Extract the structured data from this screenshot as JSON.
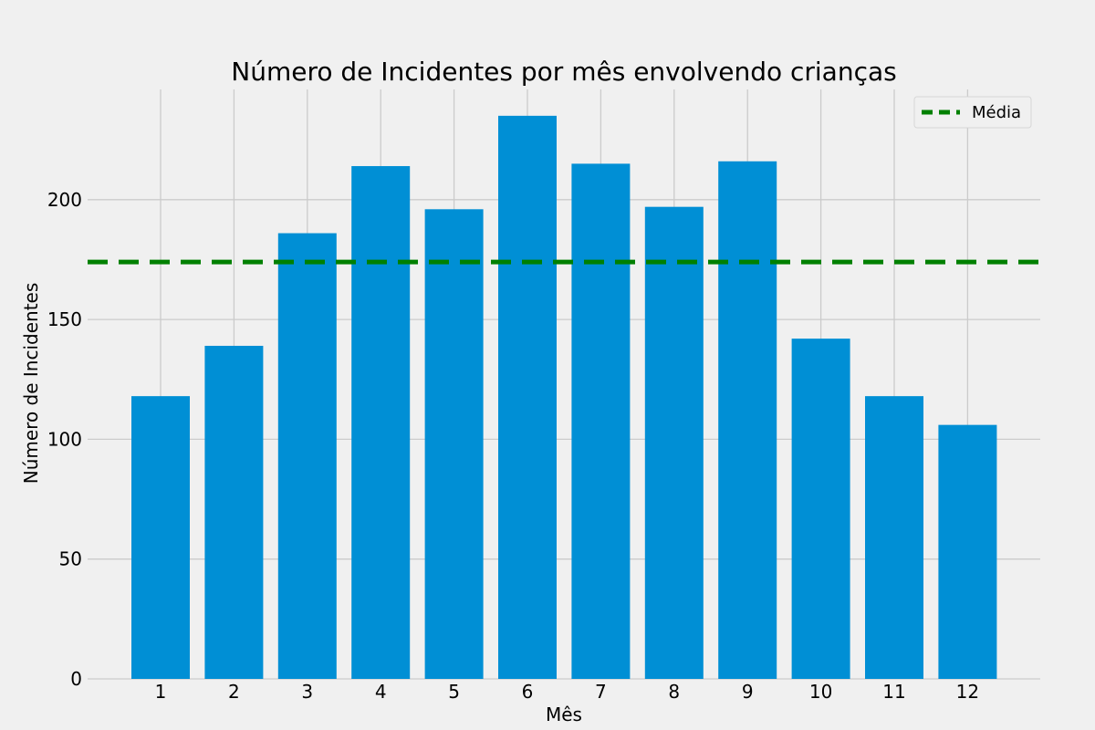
{
  "chart_data": {
    "type": "bar",
    "title": "Número de Incidentes por mês envolvendo crianças",
    "xlabel": "Mês",
    "ylabel": "Número de Incidentes",
    "categories": [
      "1",
      "2",
      "3",
      "4",
      "5",
      "6",
      "7",
      "8",
      "9",
      "10",
      "11",
      "12"
    ],
    "values": [
      118,
      139,
      186,
      214,
      196,
      235,
      215,
      197,
      216,
      142,
      118,
      106
    ],
    "ylim": [
      0,
      246
    ],
    "yticks": [
      0,
      50,
      100,
      150,
      200
    ],
    "ytick_labels": [
      "0",
      "50",
      "100",
      "150",
      "200"
    ],
    "grid": true,
    "reference_line": {
      "label": "Média",
      "value": 174,
      "style": "dashed",
      "color": "#008000"
    },
    "legend": {
      "position": "top-right",
      "entries": [
        "Média"
      ]
    },
    "colors": {
      "bar": "#008fd5",
      "background": "#f0f0f0",
      "grid": "#cbcbcb",
      "mean_line": "#008000"
    }
  }
}
